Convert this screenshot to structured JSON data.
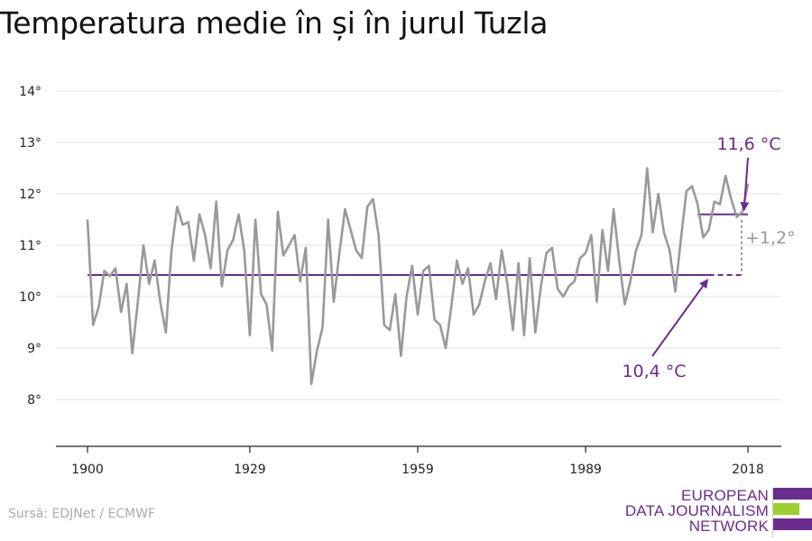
{
  "chart_data": {
    "type": "line",
    "title": "Temperatura medie în și în jurul Tuzla",
    "xlabel": "",
    "ylabel": "",
    "xlim": [
      1900,
      2018
    ],
    "ylim": [
      7.1,
      14.3
    ],
    "x_ticks": [
      1900,
      1929,
      1959,
      1989,
      2018
    ],
    "x_tick_labels": [
      "1900",
      "1929",
      "1959",
      "1989",
      "2018"
    ],
    "y_ticks": [
      8,
      9,
      10,
      11,
      12,
      13,
      14
    ],
    "y_tick_labels": [
      "8°",
      "9°",
      "10°",
      "11°",
      "12°",
      "13°",
      "14°"
    ],
    "grid": "horizontal",
    "series": [
      {
        "color": "#999999",
        "x": [
          1900,
          1901,
          1902,
          1903,
          1904,
          1905,
          1906,
          1907,
          1908,
          1909,
          1910,
          1911,
          1912,
          1913,
          1914,
          1915,
          1916,
          1917,
          1918,
          1919,
          1920,
          1921,
          1922,
          1923,
          1924,
          1925,
          1926,
          1927,
          1928,
          1929,
          1930,
          1931,
          1932,
          1933,
          1934,
          1935,
          1936,
          1937,
          1938,
          1939,
          1940,
          1941,
          1942,
          1943,
          1944,
          1945,
          1946,
          1947,
          1948,
          1949,
          1950,
          1951,
          1952,
          1953,
          1954,
          1955,
          1956,
          1957,
          1958,
          1959,
          1960,
          1961,
          1962,
          1963,
          1964,
          1965,
          1966,
          1967,
          1968,
          1969,
          1970,
          1971,
          1972,
          1973,
          1974,
          1975,
          1976,
          1977,
          1978,
          1979,
          1980,
          1981,
          1982,
          1983,
          1984,
          1985,
          1986,
          1987,
          1988,
          1989,
          1990,
          1991,
          1992,
          1993,
          1994,
          1995,
          1996,
          1997,
          1998,
          1999,
          2000,
          2001,
          2002,
          2003,
          2004,
          2005,
          2006,
          2007,
          2008,
          2009,
          2010,
          2011,
          2012,
          2013,
          2014,
          2015,
          2016,
          2017,
          2018
        ],
        "y": [
          11.5,
          9.45,
          9.8,
          10.5,
          10.4,
          10.55,
          9.7,
          10.25,
          8.9,
          9.9,
          11.0,
          10.25,
          10.7,
          9.9,
          9.3,
          10.9,
          11.75,
          11.4,
          11.45,
          10.7,
          11.6,
          11.2,
          10.55,
          11.85,
          10.2,
          10.9,
          11.1,
          11.6,
          10.9,
          9.25,
          11.5,
          10.05,
          9.85,
          8.95,
          11.65,
          10.8,
          11.0,
          11.2,
          10.3,
          10.95,
          8.3,
          8.95,
          9.4,
          11.5,
          9.9,
          10.85,
          11.7,
          11.3,
          10.9,
          10.75,
          11.75,
          11.9,
          11.2,
          9.45,
          9.35,
          10.05,
          8.85,
          10.0,
          10.6,
          9.65,
          10.5,
          10.6,
          9.55,
          9.45,
          9.0,
          9.8,
          10.7,
          10.25,
          10.55,
          9.65,
          9.85,
          10.3,
          10.65,
          9.95,
          10.9,
          10.25,
          9.35,
          10.65,
          9.25,
          10.75,
          9.3,
          10.2,
          10.85,
          10.95,
          10.15,
          10.0,
          10.2,
          10.3,
          10.75,
          10.85,
          11.2,
          9.9,
          11.3,
          10.5,
          11.7,
          10.7,
          9.85,
          10.3,
          10.9,
          11.2,
          12.5,
          11.25,
          12.0,
          11.25,
          10.9,
          10.1,
          11.1,
          12.05,
          12.15,
          11.8,
          11.15,
          11.3,
          11.85,
          11.8,
          12.35,
          11.9,
          11.55,
          11.65,
          12.2
        ]
      }
    ],
    "baseline": {
      "value": 10.42,
      "from": 1900,
      "to": 2011,
      "dashed_to": 2018,
      "color": "#6a2c8e"
    },
    "recent_mean": {
      "value": 11.6,
      "from": 2009,
      "to": 2018,
      "color": "#6a2c8e"
    },
    "annotations": {
      "recent_label": "11,6 °C",
      "baseline_label": "10,4 °C",
      "diff_label": "+1,2°"
    }
  },
  "source": "Sursă: EDJNet / ECMWF",
  "logo": {
    "lines": [
      "EUROPEAN",
      "DATA JOURNALISM",
      "NETWORK"
    ],
    "colors": {
      "purple": "#6a2c8e",
      "green": "#9bd12a"
    }
  }
}
